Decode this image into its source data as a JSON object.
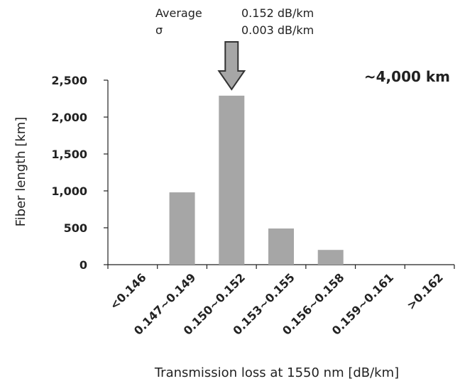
{
  "chart_data": {
    "type": "bar",
    "categories": [
      "<0.146",
      "0.147~0.149",
      "0.150~0.152",
      "0.153~0.155",
      "0.156~0.158",
      "0.159~0.161",
      ">0.162"
    ],
    "values": [
      0,
      980,
      2290,
      490,
      200,
      0,
      0
    ],
    "xlabel": "Transmission loss at 1550 nm [dB/km]",
    "ylabel": "Fiber length [km]",
    "ylim": [
      0,
      2500
    ],
    "yticks": [
      0,
      500,
      1000,
      1500,
      2000,
      2500
    ],
    "ytick_labels": [
      "0",
      "500",
      "1,000",
      "1,500",
      "2,000",
      "2,500"
    ],
    "grid": false,
    "bar_color": "#a6a6a6",
    "arrow_fill": "#a6a6a6",
    "annotations": {
      "average_label": "Average",
      "average_value": "0.152 dB/km",
      "sigma_label": "σ",
      "sigma_value": "0.003 dB/km",
      "total": "~4,000 km",
      "arrow_target_category": "0.150~0.152"
    }
  }
}
